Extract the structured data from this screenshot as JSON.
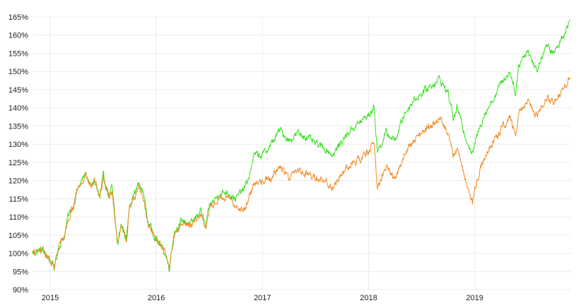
{
  "chart_data": {
    "type": "line",
    "title": "",
    "xlabel": "",
    "ylabel": "",
    "grid": true,
    "legend": "none",
    "ylim": [
      90,
      165
    ],
    "y_ticks": [
      {
        "value": 90,
        "label": "90%"
      },
      {
        "value": 95,
        "label": "95%"
      },
      {
        "value": 100,
        "label": "100%"
      },
      {
        "value": 105,
        "label": "105%"
      },
      {
        "value": 110,
        "label": "110%"
      },
      {
        "value": 115,
        "label": "115%"
      },
      {
        "value": 120,
        "label": "120%"
      },
      {
        "value": 125,
        "label": "125%"
      },
      {
        "value": 130,
        "label": "130%"
      },
      {
        "value": 135,
        "label": "135%"
      },
      {
        "value": 140,
        "label": "140%"
      },
      {
        "value": 145,
        "label": "145%"
      },
      {
        "value": 150,
        "label": "150%"
      },
      {
        "value": 155,
        "label": "155%"
      },
      {
        "value": 160,
        "label": "160%"
      },
      {
        "value": 165,
        "label": "165%"
      }
    ],
    "xlim": [
      "2014-11",
      "2019-12"
    ],
    "x_ticks": [
      {
        "value": "2015-01",
        "label": "2015"
      },
      {
        "value": "2016-01",
        "label": "2016"
      },
      {
        "value": "2017-01",
        "label": "2017"
      },
      {
        "value": "2018-01",
        "label": "2018"
      },
      {
        "value": "2019-01",
        "label": "2019"
      }
    ],
    "series": [
      {
        "color": "#33e01a",
        "points": [
          [
            "2014-11",
            100
          ],
          [
            "2014-12",
            101
          ],
          [
            "2015-01",
            98
          ],
          [
            "2015-01-15",
            96
          ],
          [
            "2015-02",
            102
          ],
          [
            "2015-02-20",
            105
          ],
          [
            "2015-03",
            110
          ],
          [
            "2015-03-20",
            113
          ],
          [
            "2015-04",
            117
          ],
          [
            "2015-05",
            122
          ],
          [
            "2015-05-20",
            118
          ],
          [
            "2015-06",
            120
          ],
          [
            "2015-06-20",
            115
          ],
          [
            "2015-07",
            121
          ],
          [
            "2015-07-20",
            116
          ],
          [
            "2015-08",
            118
          ],
          [
            "2015-08-20",
            102
          ],
          [
            "2015-09",
            108
          ],
          [
            "2015-09-20",
            104
          ],
          [
            "2015-10",
            114
          ],
          [
            "2015-11",
            119
          ],
          [
            "2015-11-20",
            116
          ],
          [
            "2015-12",
            109
          ],
          [
            "2016-01",
            104
          ],
          [
            "2016-02",
            100
          ],
          [
            "2016-02-15",
            96
          ],
          [
            "2016-03",
            106
          ],
          [
            "2016-04",
            109
          ],
          [
            "2016-05",
            108
          ],
          [
            "2016-06",
            112
          ],
          [
            "2016-06-20",
            107
          ],
          [
            "2016-07",
            113
          ],
          [
            "2016-08",
            116
          ],
          [
            "2016-09",
            117
          ],
          [
            "2016-10",
            115
          ],
          [
            "2016-11",
            118
          ],
          [
            "2016-11-20",
            122
          ],
          [
            "2016-12",
            127
          ],
          [
            "2017-01",
            127
          ],
          [
            "2017-02",
            130
          ],
          [
            "2017-03",
            134
          ],
          [
            "2017-04",
            131
          ],
          [
            "2017-05",
            133
          ],
          [
            "2017-06",
            132
          ],
          [
            "2017-07",
            130
          ],
          [
            "2017-08",
            129
          ],
          [
            "2017-09",
            127
          ],
          [
            "2017-10",
            131
          ],
          [
            "2017-11",
            134
          ],
          [
            "2017-12",
            136
          ],
          [
            "2018-01",
            138
          ],
          [
            "2018-01-20",
            140
          ],
          [
            "2018-02",
            128
          ],
          [
            "2018-03",
            133
          ],
          [
            "2018-04",
            131
          ],
          [
            "2018-05",
            138
          ],
          [
            "2018-06",
            142
          ],
          [
            "2018-07",
            144
          ],
          [
            "2018-08",
            146
          ],
          [
            "2018-09",
            148
          ],
          [
            "2018-10",
            144
          ],
          [
            "2018-10-20",
            137
          ],
          [
            "2018-11",
            140
          ],
          [
            "2018-12",
            132
          ],
          [
            "2018-12-24",
            127
          ],
          [
            "2019-01",
            130
          ],
          [
            "2019-02",
            138
          ],
          [
            "2019-03",
            142
          ],
          [
            "2019-04",
            147
          ],
          [
            "2019-05",
            150
          ],
          [
            "2019-05-20",
            144
          ],
          [
            "2019-06",
            152
          ],
          [
            "2019-07",
            156
          ],
          [
            "2019-08",
            150
          ],
          [
            "2019-09",
            157
          ],
          [
            "2019-10",
            155
          ],
          [
            "2019-11",
            160
          ],
          [
            "2019-11-25",
            164
          ]
        ]
      },
      {
        "color": "#f08a24",
        "points": [
          [
            "2014-11",
            100
          ],
          [
            "2014-12",
            101
          ],
          [
            "2015-01",
            98
          ],
          [
            "2015-01-15",
            96
          ],
          [
            "2015-02",
            102
          ],
          [
            "2015-02-20",
            105
          ],
          [
            "2015-03",
            109
          ],
          [
            "2015-03-20",
            113
          ],
          [
            "2015-04",
            117
          ],
          [
            "2015-05",
            122
          ],
          [
            "2015-05-20",
            118
          ],
          [
            "2015-06",
            120
          ],
          [
            "2015-06-20",
            115
          ],
          [
            "2015-07",
            121
          ],
          [
            "2015-07-20",
            116
          ],
          [
            "2015-08",
            117
          ],
          [
            "2015-08-20",
            103
          ],
          [
            "2015-09",
            108
          ],
          [
            "2015-09-20",
            104
          ],
          [
            "2015-10",
            113
          ],
          [
            "2015-11",
            118
          ],
          [
            "2015-11-20",
            115
          ],
          [
            "2015-12",
            108
          ],
          [
            "2016-01",
            104
          ],
          [
            "2016-02",
            100
          ],
          [
            "2016-02-15",
            96
          ],
          [
            "2016-03",
            105
          ],
          [
            "2016-04",
            108
          ],
          [
            "2016-05",
            108
          ],
          [
            "2016-06",
            111
          ],
          [
            "2016-06-20",
            107
          ],
          [
            "2016-07",
            112
          ],
          [
            "2016-08",
            115
          ],
          [
            "2016-09",
            115
          ],
          [
            "2016-10",
            113
          ],
          [
            "2016-11",
            112
          ],
          [
            "2016-11-20",
            116
          ],
          [
            "2016-12",
            119
          ],
          [
            "2017-01",
            120
          ],
          [
            "2017-02",
            121
          ],
          [
            "2017-03",
            124
          ],
          [
            "2017-04",
            121
          ],
          [
            "2017-05",
            123
          ],
          [
            "2017-06",
            122
          ],
          [
            "2017-07",
            121
          ],
          [
            "2017-08",
            120
          ],
          [
            "2017-09",
            118
          ],
          [
            "2017-10",
            122
          ],
          [
            "2017-11",
            125
          ],
          [
            "2017-12",
            126
          ],
          [
            "2018-01",
            128
          ],
          [
            "2018-01-20",
            130
          ],
          [
            "2018-02",
            118
          ],
          [
            "2018-03",
            124
          ],
          [
            "2018-04",
            120
          ],
          [
            "2018-05",
            127
          ],
          [
            "2018-06",
            131
          ],
          [
            "2018-07",
            133
          ],
          [
            "2018-08",
            135
          ],
          [
            "2018-09",
            137
          ],
          [
            "2018-10",
            133
          ],
          [
            "2018-10-20",
            127
          ],
          [
            "2018-11",
            129
          ],
          [
            "2018-12",
            120
          ],
          [
            "2018-12-24",
            114
          ],
          [
            "2019-01",
            118
          ],
          [
            "2019-02",
            126
          ],
          [
            "2019-03",
            130
          ],
          [
            "2019-04",
            134
          ],
          [
            "2019-05",
            137
          ],
          [
            "2019-05-20",
            133
          ],
          [
            "2019-06",
            139
          ],
          [
            "2019-07",
            142
          ],
          [
            "2019-08",
            138
          ],
          [
            "2019-09",
            143
          ],
          [
            "2019-10",
            141
          ],
          [
            "2019-11",
            145
          ],
          [
            "2019-11-25",
            148.5
          ]
        ]
      }
    ]
  }
}
